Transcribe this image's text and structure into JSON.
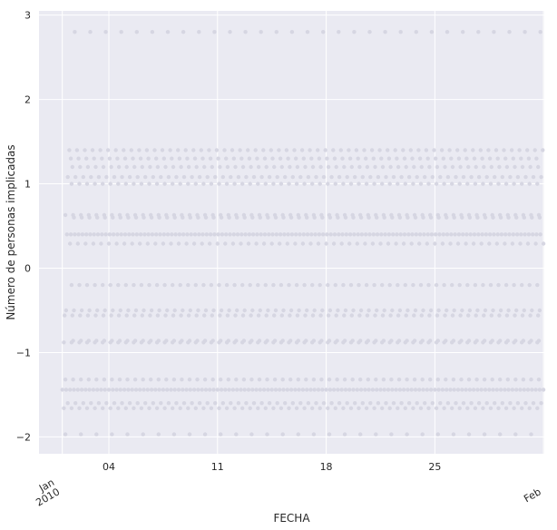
{
  "chart_data": {
    "type": "scatter",
    "title": "",
    "xlabel": "FECHA",
    "ylabel": "Número de personas implicadas",
    "xlim": [
      "2010-01-01",
      "2010-02-01"
    ],
    "ylim": [
      -2.2,
      3.05
    ],
    "x_ticks": [
      {
        "date": "2010-01-01",
        "label": "Jan\n2010",
        "rotated": true
      },
      {
        "date": "2010-01-04",
        "label": "04",
        "rotated": false
      },
      {
        "date": "2010-01-11",
        "label": "11",
        "rotated": false
      },
      {
        "date": "2010-01-18",
        "label": "18",
        "rotated": false
      },
      {
        "date": "2010-01-25",
        "label": "25",
        "rotated": false
      },
      {
        "date": "2010-02-01",
        "label": "Feb",
        "rotated": true
      }
    ],
    "y_ticks": [
      -2,
      -1,
      0,
      1,
      2,
      3
    ],
    "y_tick_labels": [
      "−2",
      "−1",
      "0",
      "1",
      "2",
      "3"
    ],
    "grid": true,
    "background": "#eaeaf2",
    "grid_color": "#ffffff",
    "point_color": "#d6d6e2",
    "levels": [
      {
        "y": 2.8,
        "step_days": 1,
        "offset_days": 0.8
      },
      {
        "y": 1.4,
        "step_days": 0.5,
        "offset_days": 0.45
      },
      {
        "y": 1.3,
        "step_days": 0.5,
        "offset_days": 0.55
      },
      {
        "y": 1.2,
        "step_days": 0.5,
        "offset_days": 0.65
      },
      {
        "y": 1.08,
        "step_days": 0.5,
        "offset_days": 0.35
      },
      {
        "y": 1.0,
        "step_days": 0.5,
        "offset_days": 0.6
      },
      {
        "y": 0.63,
        "step_days": 0.5,
        "offset_days": 0.2
      },
      {
        "y": 0.6,
        "step_days": 0.5,
        "offset_days": 0.75
      },
      {
        "y": 0.4,
        "step_days": 0.25,
        "offset_days": 0.3
      },
      {
        "y": 0.29,
        "step_days": 0.5,
        "offset_days": 0.5
      },
      {
        "y": -0.2,
        "step_days": 0.5,
        "offset_days": 0.6
      },
      {
        "y": -0.5,
        "step_days": 0.5,
        "offset_days": 0.25
      },
      {
        "y": -0.56,
        "step_days": 0.5,
        "offset_days": 0.15
      },
      {
        "y": -0.88,
        "step_days": 0.5,
        "offset_days": 0.1
      },
      {
        "y": -0.86,
        "step_days": 0.5,
        "offset_days": 0.7
      },
      {
        "y": -1.32,
        "step_days": 0.5,
        "offset_days": 0.2
      },
      {
        "y": -1.44,
        "step_days": 0.25,
        "offset_days": 0.0
      },
      {
        "y": -1.6,
        "step_days": 0.5,
        "offset_days": 0.35
      },
      {
        "y": -1.66,
        "step_days": 0.5,
        "offset_days": 0.1
      },
      {
        "y": -1.97,
        "step_days": 1,
        "offset_days": 0.2
      }
    ]
  }
}
